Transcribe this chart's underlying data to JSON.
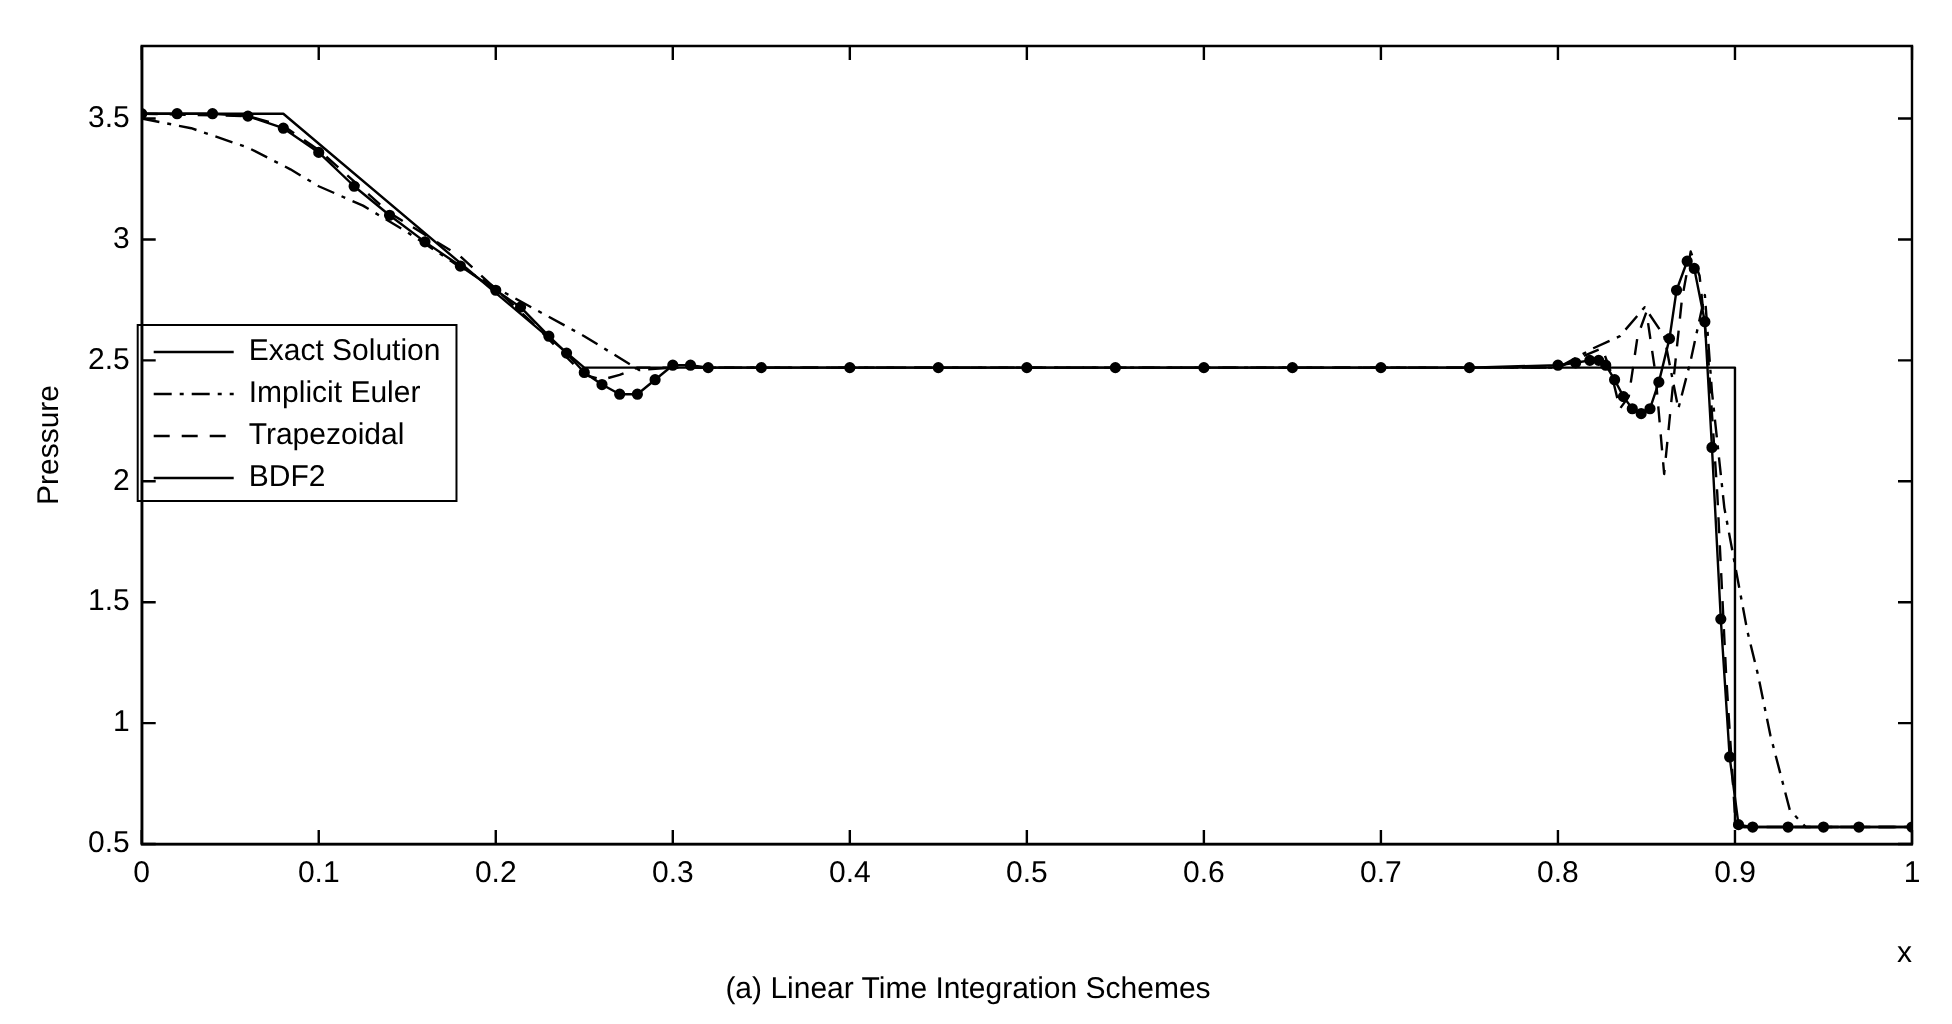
{
  "chart_data": {
    "type": "line",
    "title": "(a) Linear Time Integration Schemes",
    "xlabel": "x",
    "ylabel": "Pressure",
    "xlim": [
      0,
      1
    ],
    "xticks": [
      0,
      0.1,
      0.2,
      0.3,
      0.4,
      0.5,
      0.6,
      0.7,
      0.8,
      0.9,
      1
    ],
    "ylim": [
      0.5,
      3.8
    ],
    "yticks": [
      0.5,
      1,
      1.5,
      2,
      2.5,
      3,
      3.5
    ],
    "legend": "left",
    "series": [
      {
        "name": "Exact Solution",
        "color": "#000000",
        "marker": "none",
        "line_style": "solid",
        "x": [
          0,
          0.08,
          0.25,
          0.9,
          0.9,
          1
        ],
        "values": [
          3.52,
          3.52,
          2.47,
          2.47,
          0.57,
          0.57
        ]
      },
      {
        "name": "Implicit Euler",
        "color": "#000000",
        "marker": "none",
        "line_style": "dashdot",
        "x": [
          0,
          0.028,
          0.06,
          0.084,
          0.1,
          0.125,
          0.15,
          0.177,
          0.2,
          0.25,
          0.281,
          0.3,
          0.8,
          0.82,
          0.835,
          0.849,
          0.86,
          0.868,
          0.875,
          0.883,
          0.887,
          0.894,
          0.907,
          0.913,
          0.92,
          0.931,
          0.94,
          1
        ],
        "values": [
          3.5,
          3.46,
          3.38,
          3.29,
          3.22,
          3.14,
          3.03,
          2.9,
          2.8,
          2.6,
          2.46,
          2.47,
          2.47,
          2.55,
          2.6,
          2.72,
          2.6,
          2.3,
          2.5,
          2.77,
          2.37,
          1.89,
          1.38,
          1.2,
          0.95,
          0.64,
          0.57,
          0.57
        ]
      },
      {
        "name": "Trapezoidal",
        "color": "#000000",
        "marker": "none",
        "line_style": "dashed",
        "x": [
          0,
          0.06,
          0.08,
          0.1,
          0.14,
          0.18,
          0.22,
          0.25,
          0.26,
          0.27,
          0.28,
          0.3,
          0.8,
          0.815,
          0.825,
          0.83,
          0.835,
          0.84,
          0.845,
          0.85,
          0.855,
          0.86,
          0.865,
          0.87,
          0.875,
          0.88,
          0.885,
          0.89,
          0.895,
          0.9,
          0.905,
          1
        ],
        "values": [
          3.52,
          3.51,
          3.47,
          3.37,
          3.11,
          2.93,
          2.66,
          2.44,
          2.42,
          2.44,
          2.47,
          2.47,
          2.47,
          2.52,
          2.55,
          2.45,
          2.3,
          2.35,
          2.6,
          2.7,
          2.45,
          2.03,
          2.4,
          2.75,
          2.95,
          2.85,
          2.5,
          1.95,
          1.2,
          0.62,
          0.57,
          0.57
        ]
      },
      {
        "name": "BDF2",
        "color": "#000000",
        "marker": "circle",
        "line_style": "solid",
        "x": [
          0,
          0.02,
          0.04,
          0.06,
          0.08,
          0.1,
          0.12,
          0.14,
          0.16,
          0.18,
          0.2,
          0.214,
          0.23,
          0.24,
          0.25,
          0.26,
          0.27,
          0.28,
          0.29,
          0.3,
          0.31,
          0.32,
          0.35,
          0.4,
          0.45,
          0.5,
          0.55,
          0.6,
          0.65,
          0.7,
          0.75,
          0.8,
          0.81,
          0.818,
          0.823,
          0.827,
          0.832,
          0.837,
          0.842,
          0.847,
          0.852,
          0.857,
          0.863,
          0.867,
          0.873,
          0.877,
          0.883,
          0.887,
          0.892,
          0.897,
          0.902,
          0.91,
          0.93,
          0.95,
          0.97,
          1
        ],
        "values": [
          3.52,
          3.52,
          3.52,
          3.51,
          3.46,
          3.36,
          3.22,
          3.1,
          2.99,
          2.89,
          2.79,
          2.72,
          2.6,
          2.53,
          2.45,
          2.4,
          2.36,
          2.36,
          2.42,
          2.48,
          2.48,
          2.47,
          2.47,
          2.47,
          2.47,
          2.47,
          2.47,
          2.47,
          2.47,
          2.47,
          2.47,
          2.48,
          2.49,
          2.5,
          2.5,
          2.48,
          2.42,
          2.35,
          2.3,
          2.28,
          2.3,
          2.41,
          2.59,
          2.79,
          2.91,
          2.88,
          2.66,
          2.14,
          1.43,
          0.86,
          0.58,
          0.57,
          0.57,
          0.57,
          0.57,
          0.57
        ]
      }
    ]
  }
}
